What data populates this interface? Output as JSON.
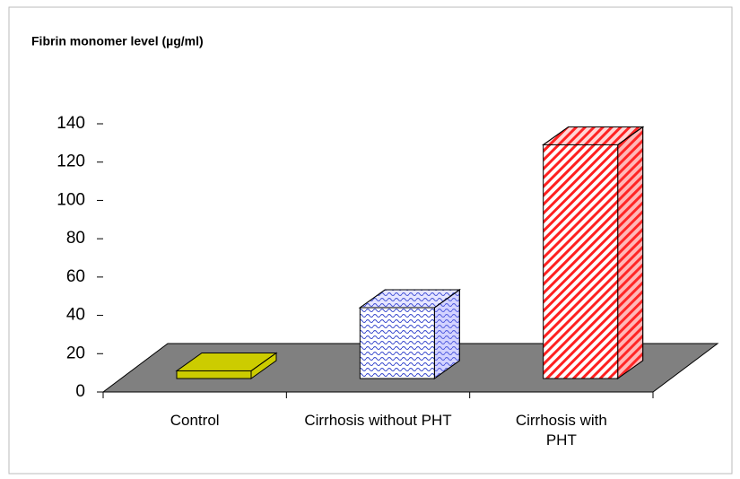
{
  "chart_data": {
    "type": "bar3d",
    "title": "Fibrin monomer level (µg/ml)",
    "categories": [
      "Control",
      "Cirrhosis without PHT",
      "Cirrhosis with PHT"
    ],
    "values": [
      4,
      37,
      122
    ],
    "colors": [
      "#cccc00",
      "#8080ff",
      "#ff3333"
    ],
    "ylim": [
      0,
      140
    ],
    "yticks": [
      0,
      20,
      40,
      60,
      80,
      100,
      120,
      140
    ]
  }
}
